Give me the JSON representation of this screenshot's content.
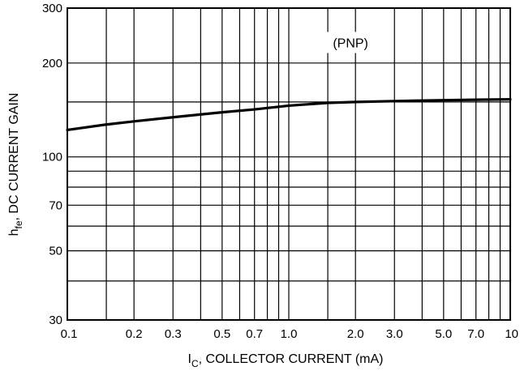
{
  "chart_data": {
    "type": "line",
    "xscale": "log",
    "yscale": "log",
    "xlim": [
      0.1,
      10
    ],
    "ylim": [
      30,
      300
    ],
    "grid": true,
    "ylabel_main": "h",
    "ylabel_sub": "fe",
    "ylabel_rest": ", DC CURRENT GAIN",
    "xlabel_main": "I",
    "xlabel_sub": "C",
    "xlabel_rest": ", COLLECTOR CURRENT (mA)",
    "annotation": "(PNP)",
    "x_ticks": [
      {
        "value": 0.1,
        "label": "0.1"
      },
      {
        "value": 0.2,
        "label": "0.2"
      },
      {
        "value": 0.3,
        "label": "0.3"
      },
      {
        "value": 0.5,
        "label": "0.5"
      },
      {
        "value": 0.7,
        "label": "0.7"
      },
      {
        "value": 1.0,
        "label": "1.0"
      },
      {
        "value": 2.0,
        "label": "2.0"
      },
      {
        "value": 3.0,
        "label": "3.0"
      },
      {
        "value": 5.0,
        "label": "5.0"
      },
      {
        "value": 7.0,
        "label": "7.0"
      },
      {
        "value": 10,
        "label": "10"
      }
    ],
    "y_ticks": [
      {
        "value": 30,
        "label": "30"
      },
      {
        "value": 50,
        "label": "50"
      },
      {
        "value": 70,
        "label": "70"
      },
      {
        "value": 100,
        "label": "100"
      },
      {
        "value": 200,
        "label": "200"
      },
      {
        "value": 300,
        "label": "300"
      }
    ],
    "x_grid": [
      0.1,
      0.15,
      0.2,
      0.3,
      0.4,
      0.5,
      0.6,
      0.7,
      0.8,
      0.9,
      1.0,
      1.5,
      2.0,
      3.0,
      4.0,
      5.0,
      6.0,
      7.0,
      8.0,
      9.0,
      10
    ],
    "y_grid": [
      30,
      40,
      50,
      60,
      70,
      80,
      90,
      100,
      150,
      200,
      300
    ],
    "series": [
      {
        "x": [
          0.1,
          0.15,
          0.2,
          0.3,
          0.5,
          0.7,
          1.0,
          1.5,
          2.0,
          3.0,
          5.0,
          7.0,
          10
        ],
        "y": [
          122,
          127,
          130,
          134,
          139,
          142,
          146,
          149,
          150,
          151,
          152,
          152.5,
          153
        ]
      }
    ],
    "annotation_x": 1.9,
    "annotation_y": 230,
    "line_color": "#000000",
    "grid_color": "#000000"
  }
}
